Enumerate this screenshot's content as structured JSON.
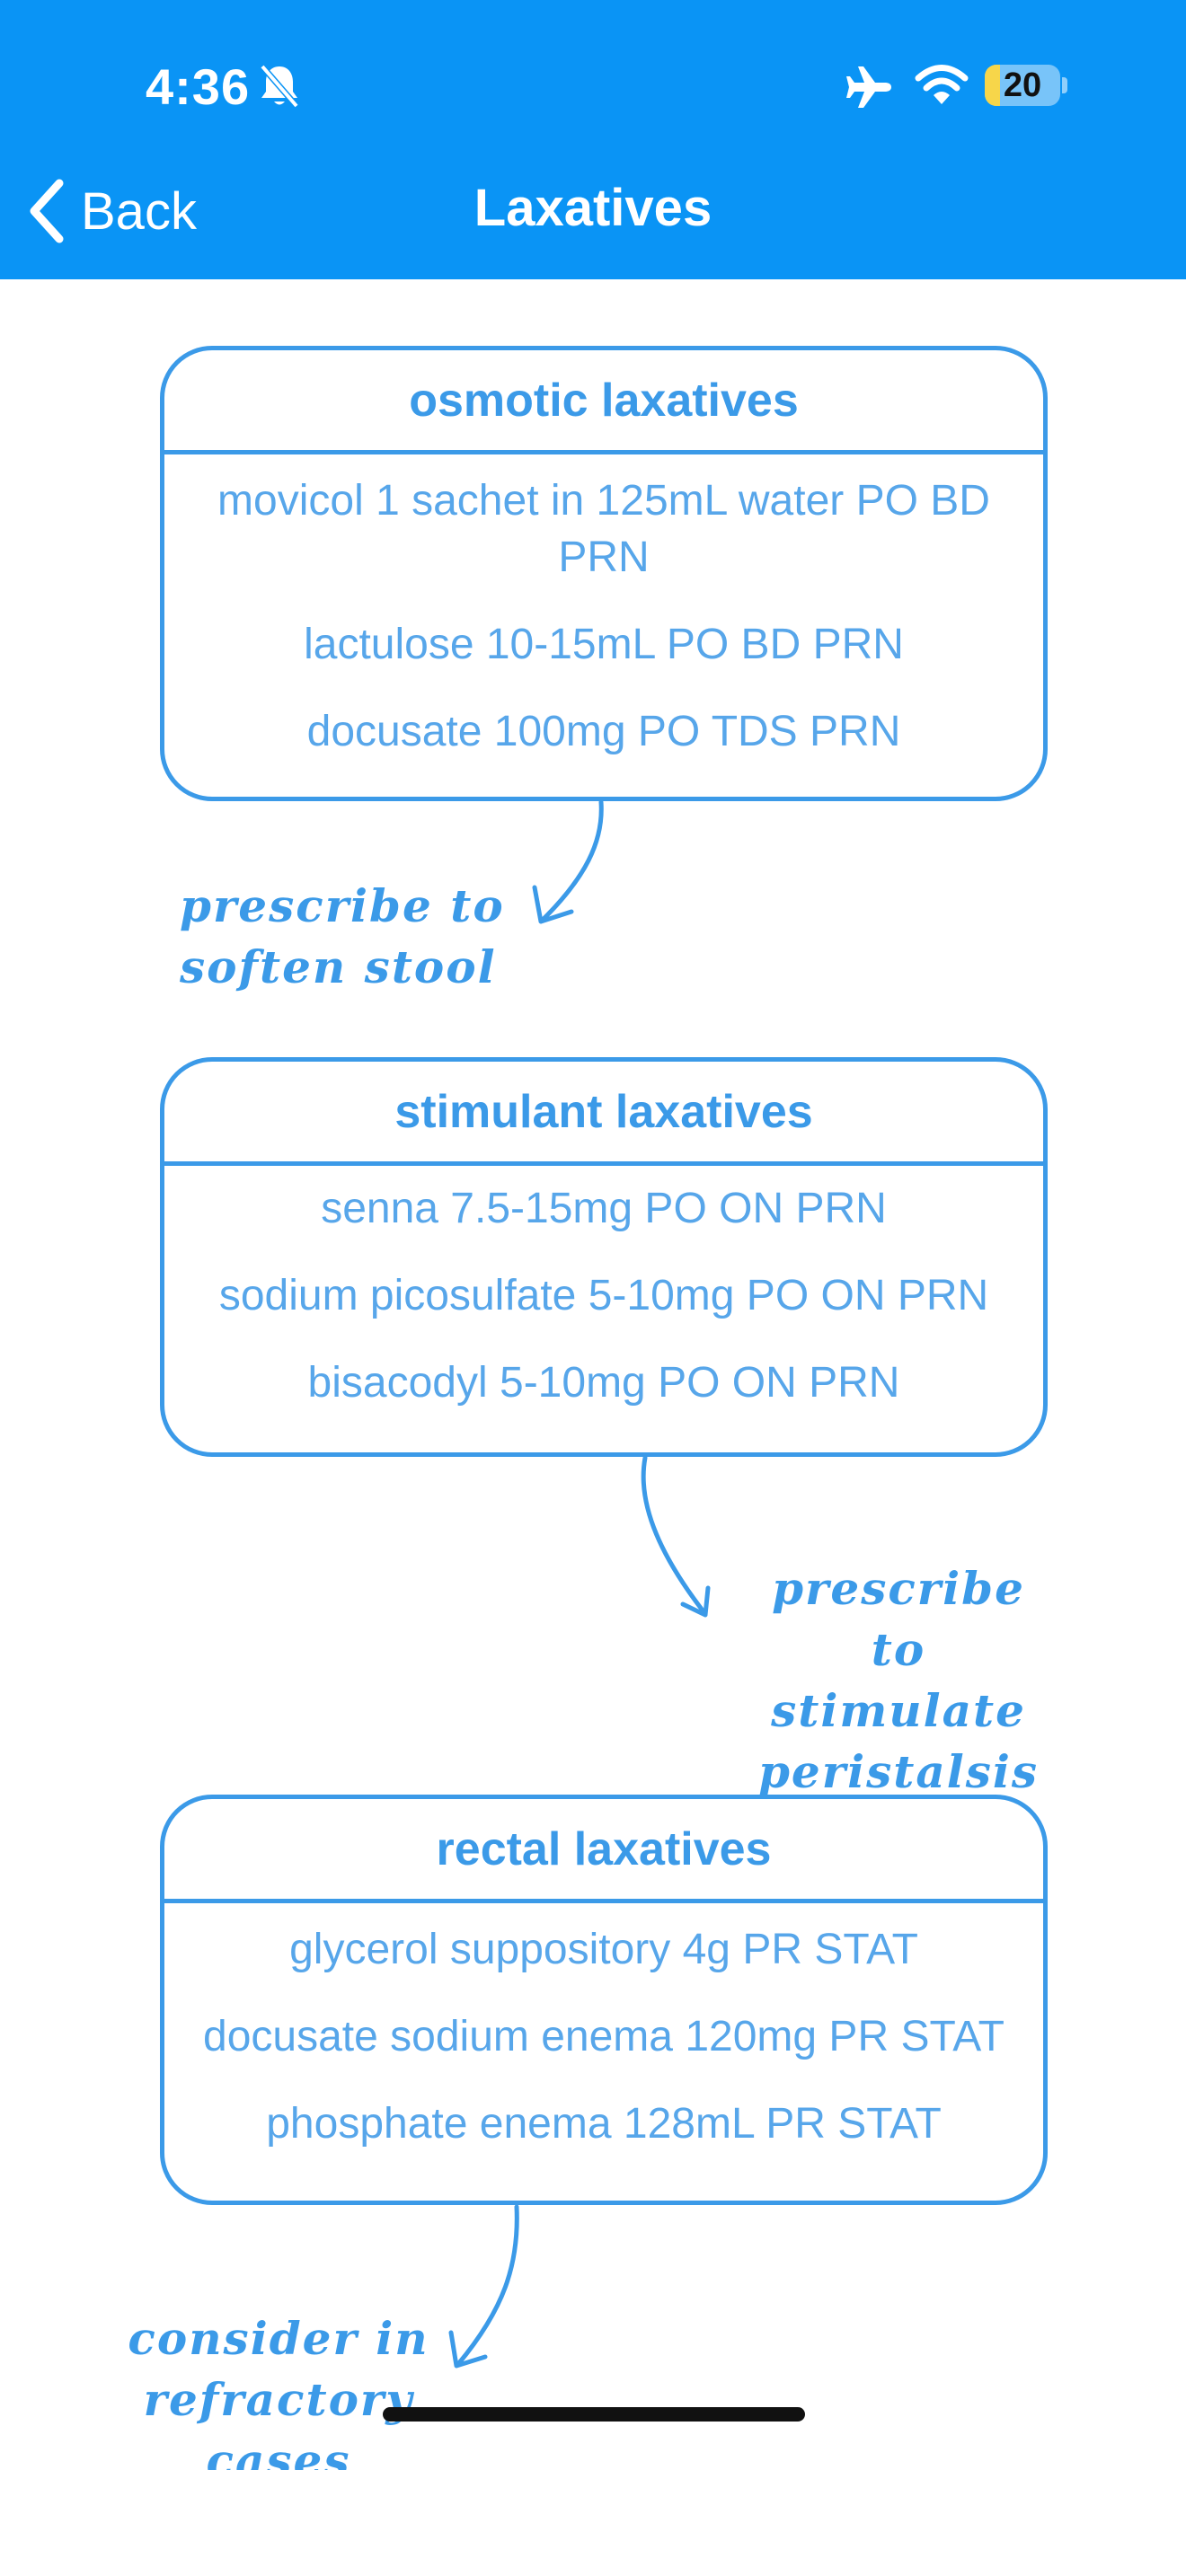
{
  "status_bar": {
    "time": "4:36",
    "battery_percent": "20",
    "battery_level": 0.2
  },
  "nav": {
    "back_label": "Back",
    "title": "Laxatives"
  },
  "cards": [
    {
      "title": "osmotic laxatives",
      "items": [
        "movicol 1 sachet in 125mL water PO BD PRN",
        "lactulose 10-15mL PO BD PRN",
        "docusate 100mg PO TDS PRN"
      ]
    },
    {
      "title": "stimulant laxatives",
      "items": [
        "senna 7.5-15mg PO ON PRN",
        "sodium picosulfate 5-10mg PO ON PRN",
        "bisacodyl 5-10mg PO ON PRN"
      ]
    },
    {
      "title": "rectal laxatives",
      "items": [
        "glycerol suppository 4g PR STAT",
        "docusate sodium enema 120mg PR STAT",
        "phosphate enema 128mL PR STAT"
      ]
    }
  ],
  "notes": {
    "osmotic": {
      "line1": "prescribe to",
      "line2": "soften stool"
    },
    "stimulant": {
      "line1": "prescribe to",
      "line2": "stimulate",
      "line3": "peristalsis"
    },
    "rectal": {
      "line1": "consider in",
      "line2": "refractory",
      "line3": "cases"
    }
  },
  "colors": {
    "header": "#0a94f5",
    "accent": "#3b9ae8",
    "item_text": "#57a6ea",
    "battery": "#f7d64a"
  },
  "icons": [
    "bell-slash-icon",
    "airplane-icon",
    "wifi-icon",
    "battery-icon",
    "chevron-left-icon"
  ]
}
